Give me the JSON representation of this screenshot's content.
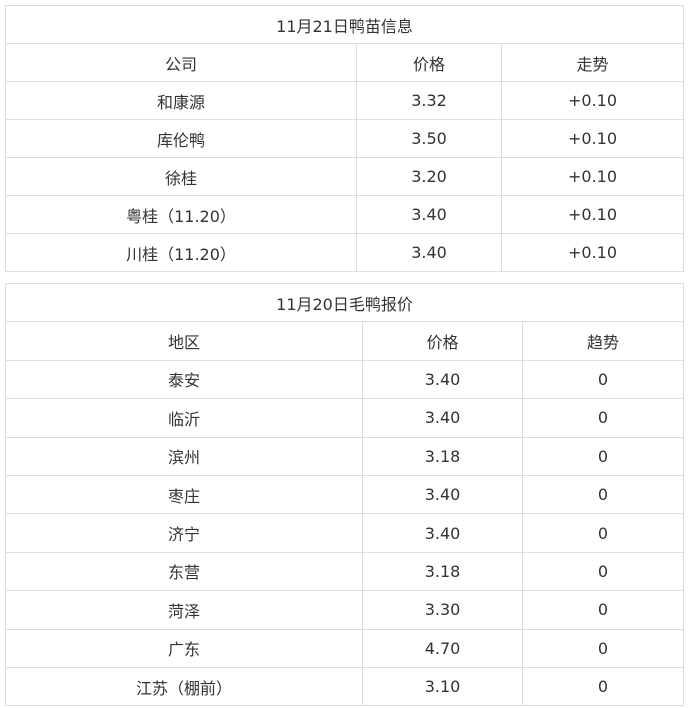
{
  "duckling": {
    "title": "11月21日鸭苗信息",
    "headers": [
      "公司",
      "价格",
      "走势"
    ],
    "rows": [
      [
        "和康源",
        "3.32",
        "+0.10"
      ],
      [
        "库伦鸭",
        "3.50",
        "+0.10"
      ],
      [
        "徐桂",
        "3.20",
        "+0.10"
      ],
      [
        "粤桂（11.20）",
        "3.40",
        "+0.10"
      ],
      [
        "川桂（11.20）",
        "3.40",
        "+0.10"
      ]
    ]
  },
  "duck": {
    "title": "11月20日毛鸭报价",
    "headers": [
      "地区",
      "价格",
      "趋势"
    ],
    "rows": [
      [
        "泰安",
        "3.40",
        "0"
      ],
      [
        "临沂",
        "3.40",
        "0"
      ],
      [
        "滨州",
        "3.18",
        "0"
      ],
      [
        "枣庄",
        "3.40",
        "0"
      ],
      [
        "济宁",
        "3.40",
        "0"
      ],
      [
        "东营",
        "3.18",
        "0"
      ],
      [
        "菏泽",
        "3.30",
        "0"
      ],
      [
        "广东",
        "4.70",
        "0"
      ],
      [
        "江苏（棚前）",
        "3.10",
        "0"
      ]
    ]
  }
}
